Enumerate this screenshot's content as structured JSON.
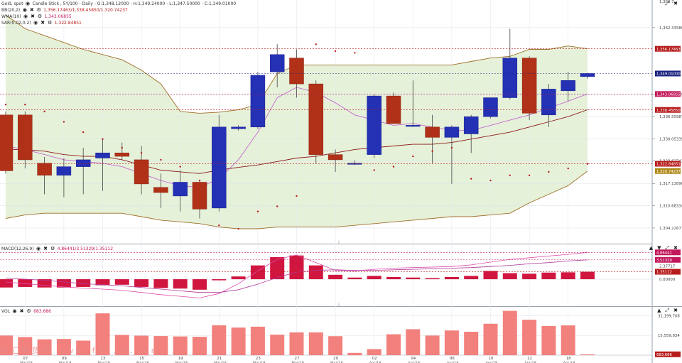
{
  "price_legend": {
    "title": "Gold, spot",
    "ohlc": "Candle Stick , 5Y/100 - Daily - O:1,348.12000 - H:1,349.24000 - L:1,347.50000 - C:1,349.01000",
    "bb_label": "BB(20,2)",
    "bb_values": "1,356.17463/1,338.45850/1,320.74237",
    "wma_label": "WMA(10)",
    "wma_value": "1,343.06855",
    "sar_label": "SAR(0.02,0.2)",
    "sar_value": "1,322.84851"
  },
  "macd_legend": {
    "label": "MACD(12,26,9)",
    "values": "4.86441/3.51329/1.35112"
  },
  "vol_legend": {
    "label": "VOL",
    "value": "683.686"
  },
  "price_axis_ticks": [
    {
      "v": 1362.3358,
      "label": "1,362.33580"
    },
    {
      "v": 1342.9951,
      "label": "1,342.99510"
    },
    {
      "v": 1336.55987,
      "label": "1,336.55987"
    },
    {
      "v": 1330.05335,
      "label": "1,330.05335"
    },
    {
      "v": 1323.62743,
      "label": "1,323.62743"
    },
    {
      "v": 1317.1389,
      "label": "1,317.13890"
    },
    {
      "v": 1310.68334,
      "label": "1,310.68334"
    },
    {
      "v": 1304.22677,
      "label": "1,304.22677"
    }
  ],
  "price_top_label": "1,368.7...",
  "price_badges": [
    {
      "v": 1356.17463,
      "label": "1,356.17463",
      "color": "#b71c1c",
      "dashed": true
    },
    {
      "v": 1349.01,
      "label": "1,349.01000",
      "color": "#1a237e",
      "dashed": true
    },
    {
      "v": 1343.06855,
      "label": "1,343.06855",
      "color": "#c2185b",
      "dashed": true
    },
    {
      "v": 1338.4585,
      "label": "1,338.45850",
      "color": "#b71c1c",
      "dashed": true
    },
    {
      "v": 1322.84851,
      "label": "1,322.84851",
      "color": "#b71c1c",
      "dashed": true
    },
    {
      "v": 1320.74237,
      "label": "1,320.74237",
      "color": "#b08a1a",
      "dashed": false
    }
  ],
  "macd_axis": {
    "ticks": [
      {
        "v": 2.37717,
        "label": "2.37717"
      },
      {
        "v": 0.0,
        "label": "0.00000"
      }
    ],
    "badges": [
      {
        "v": 4.86441,
        "label": "4.86441",
        "color": "#c2185b"
      },
      {
        "v": 3.51329,
        "label": "3.51329",
        "color": "#c2185b"
      },
      {
        "v": 1.35112,
        "label": "1.35112",
        "color": "#b71c1c"
      }
    ]
  },
  "vol_axis": {
    "ticks": [
      {
        "v": 31199708,
        "label": "31,199,708"
      },
      {
        "v": 15559834,
        "label": "15,559,834"
      }
    ],
    "badges": [
      {
        "v": 683686,
        "label": "683,686",
        "color": "#b71c1c"
      }
    ]
  },
  "x_axis": {
    "labels": [
      {
        "i": 1,
        "day": "07",
        "month": "Mar/18"
      },
      {
        "i": 3,
        "day": "09",
        "month": "Mar/18"
      },
      {
        "i": 5,
        "day": "13",
        "month": "Mar/18"
      },
      {
        "i": 7,
        "day": "15",
        "month": "Mar/18"
      },
      {
        "i": 9,
        "day": "19",
        "month": "Mar/18"
      },
      {
        "i": 11,
        "day": "21",
        "month": "Mar/18"
      },
      {
        "i": 13,
        "day": "23",
        "month": "Mar/18"
      },
      {
        "i": 15,
        "day": "27",
        "month": "Mar/18"
      },
      {
        "i": 17,
        "day": "29",
        "month": "Mar/18"
      },
      {
        "i": 19,
        "day": "02",
        "month": "Apr/18"
      },
      {
        "i": 21,
        "day": "04",
        "month": "Apr/18"
      },
      {
        "i": 23,
        "day": "06",
        "month": "Apr/18"
      },
      {
        "i": 25,
        "day": "10",
        "month": "Apr/18"
      },
      {
        "i": 27,
        "day": "12",
        "month": "Apr/18"
      },
      {
        "i": 29,
        "day": "18",
        "month": "Apr/18"
      }
    ]
  },
  "watermark": "外汇期货网 www.fyjzb.com",
  "chart_data": {
    "type": "candlestick",
    "title": "Gold, spot",
    "subtitle": "Candle Stick , 5Y/100 - Daily",
    "y_range": [
      1300.3,
      1369.5
    ],
    "grid": true,
    "candles": [
      {
        "o": 1337.0,
        "h": 1338.0,
        "l": 1320.0,
        "c": 1320.8
      },
      {
        "o": 1337.0,
        "h": 1338.0,
        "l": 1321.5,
        "c": 1324.0
      },
      {
        "o": 1323.0,
        "h": 1324.8,
        "l": 1314.0,
        "c": 1319.5
      },
      {
        "o": 1319.5,
        "h": 1324.5,
        "l": 1313.2,
        "c": 1322.0
      },
      {
        "o": 1322.0,
        "h": 1327.5,
        "l": 1314.0,
        "c": 1324.0
      },
      {
        "o": 1324.5,
        "h": 1330.0,
        "l": 1315.0,
        "c": 1326.0
      },
      {
        "o": 1326.0,
        "h": 1329.0,
        "l": 1324.0,
        "c": 1325.0
      },
      {
        "o": 1324.0,
        "h": 1328.0,
        "l": 1314.0,
        "c": 1317.0
      },
      {
        "o": 1316.0,
        "h": 1320.0,
        "l": 1310.0,
        "c": 1314.5
      },
      {
        "o": 1313.5,
        "h": 1321.0,
        "l": 1309.0,
        "c": 1317.5
      },
      {
        "o": 1317.5,
        "h": 1318.0,
        "l": 1307.0,
        "c": 1309.7
      },
      {
        "o": 1310.0,
        "h": 1337.0,
        "l": 1309.0,
        "c": 1333.5
      },
      {
        "o": 1333.0,
        "h": 1334.0,
        "l": 1332.5,
        "c": 1333.5
      },
      {
        "o": 1333.5,
        "h": 1349.5,
        "l": 1333.0,
        "c": 1348.5
      },
      {
        "o": 1349.5,
        "h": 1357.5,
        "l": 1345.0,
        "c": 1354.5
      },
      {
        "o": 1353.5,
        "h": 1356.0,
        "l": 1342.0,
        "c": 1346.0
      },
      {
        "o": 1346.0,
        "h": 1347.0,
        "l": 1323.0,
        "c": 1325.5
      },
      {
        "o": 1325.5,
        "h": 1327.0,
        "l": 1320.5,
        "c": 1324.0
      },
      {
        "o": 1323.0,
        "h": 1323.8,
        "l": 1322.5,
        "c": 1323.0
      },
      {
        "o": 1325.5,
        "h": 1343.0,
        "l": 1324.5,
        "c": 1342.5
      },
      {
        "o": 1342.5,
        "h": 1343.5,
        "l": 1334.5,
        "c": 1334.5
      },
      {
        "o": 1334.0,
        "h": 1347.0,
        "l": 1333.5,
        "c": 1334.0
      },
      {
        "o": 1333.5,
        "h": 1337.0,
        "l": 1323.0,
        "c": 1330.5
      },
      {
        "o": 1330.5,
        "h": 1334.0,
        "l": 1317.0,
        "c": 1333.5
      },
      {
        "o": 1331.5,
        "h": 1337.0,
        "l": 1326.0,
        "c": 1336.5
      },
      {
        "o": 1336.5,
        "h": 1342.0,
        "l": 1336.0,
        "c": 1342.0
      },
      {
        "o": 1342.0,
        "h": 1362.0,
        "l": 1341.5,
        "c": 1353.5
      },
      {
        "o": 1353.5,
        "h": 1354.0,
        "l": 1335.5,
        "c": 1337.5
      },
      {
        "o": 1337.0,
        "h": 1346.0,
        "l": 1333.5,
        "c": 1344.5
      },
      {
        "o": 1344.0,
        "h": 1349.5,
        "l": 1341.0,
        "c": 1347.0
      },
      {
        "o": 1348.12,
        "h": 1349.24,
        "l": 1347.5,
        "c": 1349.01
      }
    ],
    "bb_upper": [
      1366.0,
      1362.0,
      1360.0,
      1358.0,
      1356.0,
      1354.5,
      1353.0,
      1350.0,
      1346.0,
      1338.0,
      1337.5,
      1337.8,
      1338.5,
      1340.0,
      1349.0,
      1351.5,
      1351.5,
      1351.5,
      1351.5,
      1351.5,
      1351.5,
      1351.5,
      1351.5,
      1351.5,
      1352.5,
      1353.5,
      1354.0,
      1356.0,
      1356.0,
      1357.0,
      1356.2
    ],
    "bb_mid": [
      1327.0,
      1327.0,
      1326.5,
      1325.5,
      1325.0,
      1325.0,
      1324.0,
      1322.5,
      1321.0,
      1320.5,
      1320.0,
      1321.0,
      1321.8,
      1322.5,
      1323.5,
      1324.5,
      1325.0,
      1326.0,
      1327.0,
      1327.5,
      1328.0,
      1328.5,
      1328.5,
      1329.0,
      1330.0,
      1331.0,
      1332.0,
      1333.5,
      1335.0,
      1336.5,
      1338.5
    ],
    "bb_lower": [
      1307.0,
      1308.0,
      1308.5,
      1308.5,
      1308.5,
      1308.5,
      1308.5,
      1307.5,
      1306.5,
      1306.0,
      1305.5,
      1304.5,
      1304.0,
      1304.0,
      1304.5,
      1304.5,
      1304.5,
      1304.5,
      1305.0,
      1305.5,
      1306.0,
      1306.5,
      1307.0,
      1307.5,
      1307.5,
      1308.0,
      1308.5,
      1311.5,
      1314.0,
      1316.5,
      1320.7
    ],
    "wma": [
      1328.0,
      1327.0,
      1325.5,
      1324.0,
      1323.5,
      1323.0,
      1322.0,
      1320.0,
      1318.0,
      1316.5,
      1316.0,
      1318.5,
      1324.0,
      1332.0,
      1342.0,
      1345.0,
      1343.5,
      1340.5,
      1337.0,
      1335.5,
      1334.0,
      1334.5,
      1333.5,
      1332.5,
      1332.5,
      1334.0,
      1335.5,
      1337.0,
      1339.0,
      1341.0,
      1343.1
    ],
    "sar": [
      1340.0,
      1340.0,
      1338.0,
      1335.0,
      1332.0,
      1330.0,
      1327.5,
      1326.0,
      1324.0,
      1322.0,
      1318.0,
      1305.0,
      1304.0,
      1309.0,
      1310.5,
      1313.5,
      1357.5,
      1355.5,
      1355.0,
      1321.0,
      1322.0,
      1325.0,
      1326.5,
      1327.5,
      1318.5,
      1318.0,
      1319.5,
      1319.5,
      1320.5,
      1321.5,
      1322.8
    ],
    "macd_hist": [
      -1.5,
      -1.4,
      -1.5,
      -1.5,
      -1.4,
      -1.1,
      -1.0,
      -1.4,
      -1.6,
      -1.7,
      -1.9,
      -0.2,
      0.5,
      2.5,
      4.0,
      4.3,
      2.5,
      0.8,
      0.3,
      0.6,
      0.4,
      0.3,
      0.2,
      0.4,
      0.6,
      1.5,
      1.1,
      1.0,
      1.2,
      1.25,
      1.35
    ],
    "macd_line": [
      -0.5,
      -0.8,
      -1.1,
      -1.4,
      -1.6,
      -1.8,
      -2.0,
      -2.4,
      -2.8,
      -3.1,
      -3.4,
      -2.6,
      -0.8,
      1.5,
      3.6,
      4.4,
      3.0,
      1.6,
      1.5,
      1.8,
      2.0,
      2.1,
      2.2,
      2.3,
      2.6,
      3.1,
      3.6,
      3.9,
      4.2,
      4.5,
      4.86
    ],
    "macd_signal": [
      0.2,
      0.0,
      -0.2,
      -0.5,
      -0.8,
      -1.0,
      -1.2,
      -1.5,
      -1.8,
      -2.1,
      -2.4,
      -2.4,
      -1.9,
      -0.9,
      0.3,
      1.3,
      1.6,
      1.7,
      1.6,
      1.6,
      1.7,
      1.8,
      1.9,
      2.0,
      2.1,
      2.3,
      2.5,
      2.8,
      3.0,
      3.3,
      3.51
    ],
    "macd_range": [
      -4.5,
      5.8
    ],
    "volume": [
      15500000,
      14300000,
      12500000,
      12800000,
      11500000,
      33000000,
      16000000,
      15400000,
      15100000,
      14800000,
      14500000,
      23600000,
      21800000,
      22500000,
      16200000,
      18000000,
      18000000,
      15000000,
      1800000,
      4800000,
      16500000,
      20500000,
      15500000,
      19500000,
      18500000,
      24800000,
      35000000,
      28000000,
      23000000,
      23500000,
      683686
    ],
    "volume_range": [
      0,
      37000000
    ]
  }
}
